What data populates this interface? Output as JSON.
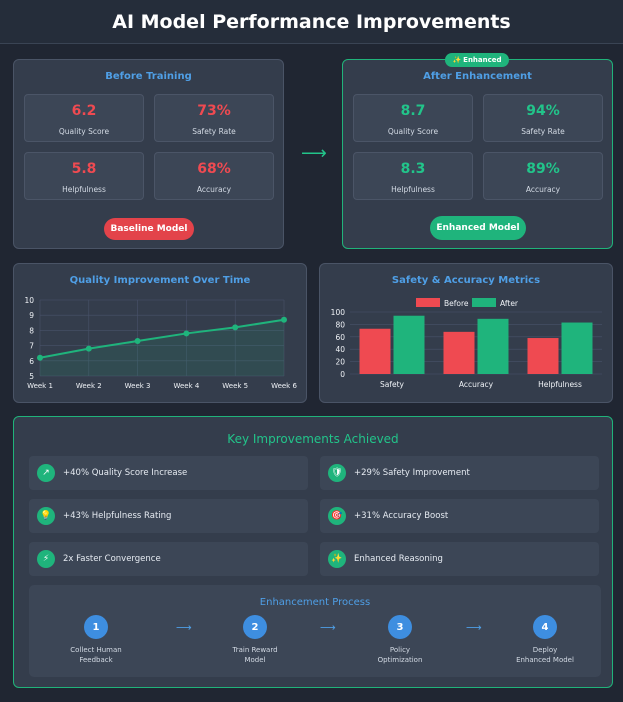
{
  "title": "AI Model Performance Improvements",
  "before": {
    "title": "Before Training",
    "metrics": [
      {
        "value": "6.2",
        "label": "Quality Score"
      },
      {
        "value": "73%",
        "label": "Safety Rate"
      },
      {
        "value": "5.8",
        "label": "Helpfulness"
      },
      {
        "value": "68%",
        "label": "Accuracy"
      }
    ],
    "button": "Baseline Model"
  },
  "transition_arrow": "⟶",
  "after": {
    "badge_icon": "✨",
    "badge": "Enhanced",
    "title": "After Enhancement",
    "metrics": [
      {
        "value": "8.7",
        "label": "Quality Score"
      },
      {
        "value": "94%",
        "label": "Safety Rate"
      },
      {
        "value": "8.3",
        "label": "Helpfulness"
      },
      {
        "value": "89%",
        "label": "Accuracy"
      }
    ],
    "button": "Enhanced Model"
  },
  "colors": {
    "before": "#ef4a51",
    "after": "#1fb47c",
    "accent": "#4f9fe6"
  },
  "chart_data": [
    {
      "type": "line",
      "title": "Quality Improvement Over Time",
      "x": [
        "Week 1",
        "Week 2",
        "Week 3",
        "Week 4",
        "Week 5",
        "Week 6"
      ],
      "values": [
        6.2,
        6.8,
        7.3,
        7.8,
        8.2,
        8.7
      ],
      "ylim": [
        5,
        10
      ],
      "yticks": [
        5,
        6,
        7,
        8,
        9,
        10
      ],
      "grid": true
    },
    {
      "type": "bar",
      "title": "Safety & Accuracy Metrics",
      "categories": [
        "Safety",
        "Accuracy",
        "Helpfulness"
      ],
      "series": [
        {
          "name": "Before",
          "values": [
            73,
            68,
            58
          ]
        },
        {
          "name": "After",
          "values": [
            94,
            89,
            83
          ]
        }
      ],
      "ylim": [
        0,
        100
      ],
      "yticks": [
        0,
        20,
        40,
        60,
        80,
        100
      ],
      "legend": "top-center"
    }
  ],
  "improvements": {
    "title": "Key Improvements Achieved",
    "items": [
      {
        "icon": "↗",
        "icon_name": "trend-up-icon",
        "text": "+40% Quality Score Increase"
      },
      {
        "icon": "🛡",
        "icon_name": "shield-icon",
        "text": "+29% Safety Improvement"
      },
      {
        "icon": "💡",
        "icon_name": "lightbulb-icon",
        "text": "+43% Helpfulness Rating"
      },
      {
        "icon": "🎯",
        "icon_name": "target-icon",
        "text": "+31% Accuracy Boost"
      },
      {
        "icon": "⚡",
        "icon_name": "lightning-icon",
        "text": "2x Faster Convergence"
      },
      {
        "icon": "✨",
        "icon_name": "sparkles-icon",
        "text": "Enhanced Reasoning"
      }
    ]
  },
  "process": {
    "title": "Enhancement Process",
    "arrow": "⟶",
    "steps": [
      {
        "num": "1",
        "line1": "Collect Human",
        "line2": "Feedback"
      },
      {
        "num": "2",
        "line1": "Train Reward",
        "line2": "Model"
      },
      {
        "num": "3",
        "line1": "Policy",
        "line2": "Optimization"
      },
      {
        "num": "4",
        "line1": "Deploy",
        "line2": "Enhanced Model"
      }
    ]
  }
}
